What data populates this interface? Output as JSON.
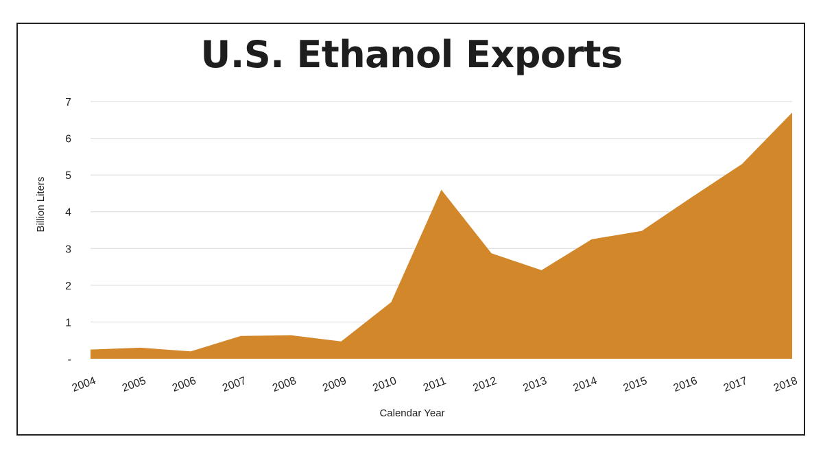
{
  "chart_data": {
    "type": "area",
    "title": "U.S. Ethanol Exports",
    "xlabel": "Calendar Year",
    "ylabel": "Billion Liters",
    "x": [
      "2004",
      "2005",
      "2006",
      "2007",
      "2008",
      "2009",
      "2010",
      "2011",
      "2012",
      "2013",
      "2014",
      "2015",
      "2016",
      "2017",
      "2018"
    ],
    "series": [
      {
        "name": "U.S. Ethanol Exports",
        "values": [
          0.25,
          0.3,
          0.2,
          0.62,
          0.64,
          0.47,
          1.54,
          4.6,
          2.87,
          2.41,
          3.25,
          3.48,
          4.4,
          5.3,
          6.7
        ]
      }
    ],
    "ylim": [
      0,
      7
    ],
    "yticks": [
      "-",
      "1",
      "2",
      "3",
      "4",
      "5",
      "6",
      "7"
    ],
    "grid": true,
    "color": "#D3872B"
  }
}
